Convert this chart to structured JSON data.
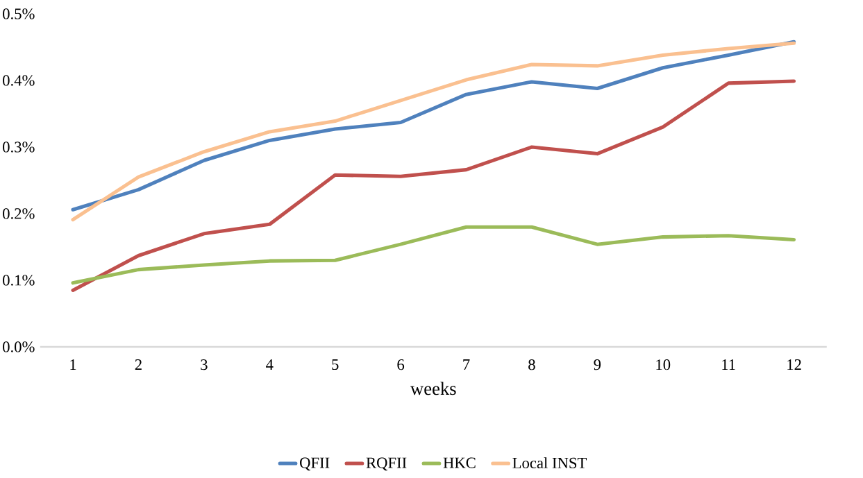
{
  "chart_data": {
    "type": "line",
    "xlabel": "weeks",
    "categories": [
      "1",
      "2",
      "3",
      "4",
      "5",
      "6",
      "7",
      "8",
      "9",
      "10",
      "11",
      "12"
    ],
    "series": [
      {
        "name": "QFII",
        "color": "#4f81bd",
        "values": [
          0.206,
          0.236,
          0.28,
          0.31,
          0.327,
          0.337,
          0.379,
          0.398,
          0.388,
          0.419,
          0.438,
          0.458
        ]
      },
      {
        "name": "RQFII",
        "color": "#c0504d",
        "values": [
          0.085,
          0.137,
          0.17,
          0.184,
          0.258,
          0.256,
          0.266,
          0.3,
          0.29,
          0.33,
          0.396,
          0.399
        ]
      },
      {
        "name": "HKC",
        "color": "#9bbb59",
        "values": [
          0.096,
          0.116,
          0.123,
          0.129,
          0.13,
          0.154,
          0.18,
          0.18,
          0.154,
          0.165,
          0.167,
          0.161
        ]
      },
      {
        "name": "Local INST",
        "color": "#fac090",
        "values": [
          0.191,
          0.255,
          0.293,
          0.323,
          0.339,
          0.37,
          0.401,
          0.424,
          0.422,
          0.438,
          0.448,
          0.456
        ]
      }
    ],
    "ylim": [
      0,
      0.5
    ],
    "yticks": [
      {
        "value": 0,
        "label": "0.0%"
      },
      {
        "value": 0.1,
        "label": "0.1%"
      },
      {
        "value": 0.2,
        "label": "0.2%"
      },
      {
        "value": 0.3,
        "label": "0.3%"
      },
      {
        "value": 0.4,
        "label": "0.4%"
      },
      {
        "value": 0.5,
        "label": "0.5%"
      }
    ],
    "grid": false,
    "legend": "bottom"
  }
}
